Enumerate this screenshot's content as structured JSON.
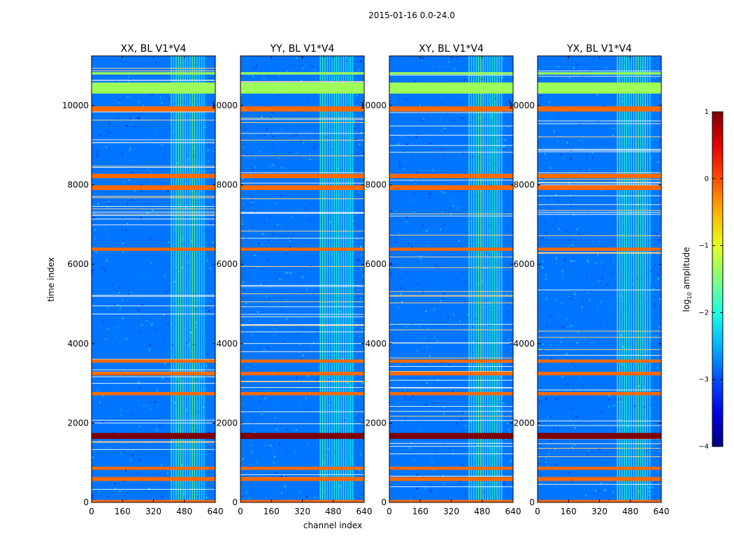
{
  "suptitle": "2015-01-16 0.0-24.0",
  "xlabel": "channel index",
  "ylabel": "time index",
  "chart_data": [
    {
      "type": "heatmap",
      "title": "XX, BL V1*V4",
      "xlim": [
        0,
        640
      ],
      "ylim": [
        0,
        11250
      ],
      "xticks": [
        0,
        160,
        320,
        480,
        640
      ],
      "yticks": [
        0,
        2000,
        4000,
        6000,
        8000,
        10000
      ]
    },
    {
      "type": "heatmap",
      "title": "YY, BL V1*V4",
      "xlim": [
        0,
        640
      ],
      "ylim": [
        0,
        11250
      ],
      "xticks": [
        0,
        160,
        320,
        480,
        640
      ],
      "yticks": [
        0,
        2000,
        4000,
        6000,
        8000,
        10000
      ]
    },
    {
      "type": "heatmap",
      "title": "XY, BL V1*V4",
      "xlim": [
        0,
        640
      ],
      "ylim": [
        0,
        11250
      ],
      "xticks": [
        0,
        160,
        320,
        480,
        640
      ],
      "yticks": [
        0,
        2000,
        4000,
        6000,
        8000,
        10000
      ]
    },
    {
      "type": "heatmap",
      "title": "YX, BL V1*V4",
      "xlim": [
        0,
        640
      ],
      "ylim": [
        0,
        11250
      ],
      "xticks": [
        0,
        160,
        320,
        480,
        640
      ],
      "yticks": [
        0,
        2000,
        4000,
        6000,
        8000,
        10000
      ]
    }
  ],
  "colorbar": {
    "label": "log10 amplitude",
    "label_base": "log",
    "label_sub": "10",
    "label_rest": " amplitude",
    "range": [
      -4,
      1
    ],
    "ticks": [
      "1",
      "0",
      "−1",
      "−2",
      "−3",
      "−4"
    ],
    "colormap": "jet"
  },
  "features": {
    "background_level": -2.8,
    "rfi_channel_band": [
      410,
      580
    ],
    "rfi_level": -1.8,
    "flag_rows_orange": [
      [
        0,
        60
      ],
      [
        540,
        640
      ],
      [
        820,
        900
      ],
      [
        2700,
        2780
      ],
      [
        3200,
        3290
      ],
      [
        3520,
        3600
      ],
      [
        6340,
        6420
      ],
      [
        7870,
        7990
      ],
      [
        8170,
        8280
      ],
      [
        9850,
        9980
      ]
    ],
    "flag_rows_darkred": [
      [
        1600,
        1750
      ]
    ],
    "flag_rows_green": [
      [
        10300,
        10580
      ],
      [
        10780,
        10840
      ]
    ],
    "colors": {
      "flag_orange": "#ff6a00",
      "flag_darkred": "#7f0000",
      "flag_green": "#9dff5a",
      "background": "#1f56ff"
    }
  }
}
